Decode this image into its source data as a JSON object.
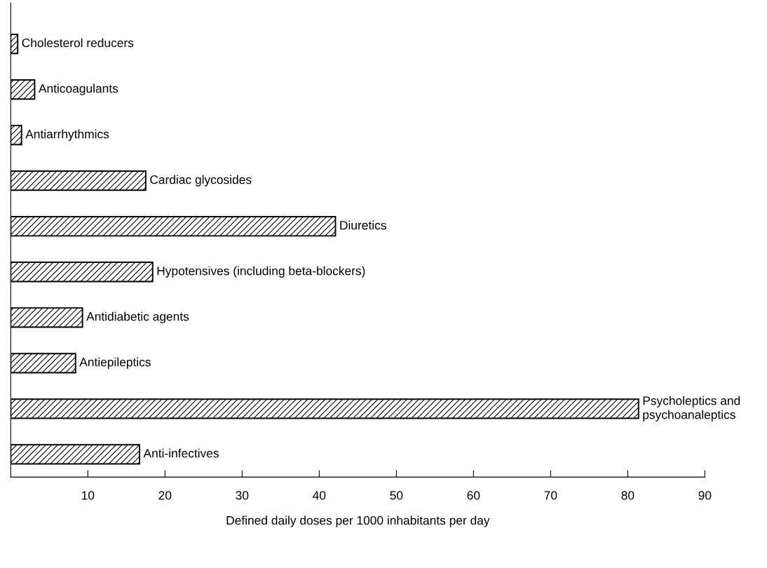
{
  "chart_data": {
    "type": "bar",
    "orientation": "horizontal",
    "xlabel": "Defined daily doses per 1000 inhabitants per day",
    "categories": [
      "Cholesterol reducers",
      "Anticoagulants",
      "Antiarrhythmics",
      "Cardiac glycosides",
      "Diuretics",
      "Hypotensives (including beta-blockers)",
      "Antidiabetic agents",
      "Antiepileptics",
      "Psycholeptics and\npsychoanaleptics",
      "Anti-infectives"
    ],
    "values": [
      0.9,
      3.1,
      1.4,
      17.5,
      42.1,
      18.4,
      9.3,
      8.4,
      81.4,
      16.7
    ],
    "color": "#000000",
    "xlim": [
      0,
      90
    ],
    "xticks": [
      10,
      20,
      30,
      40,
      50,
      60,
      70,
      80,
      90
    ],
    "tick_labels": "x",
    "grid": false
  }
}
